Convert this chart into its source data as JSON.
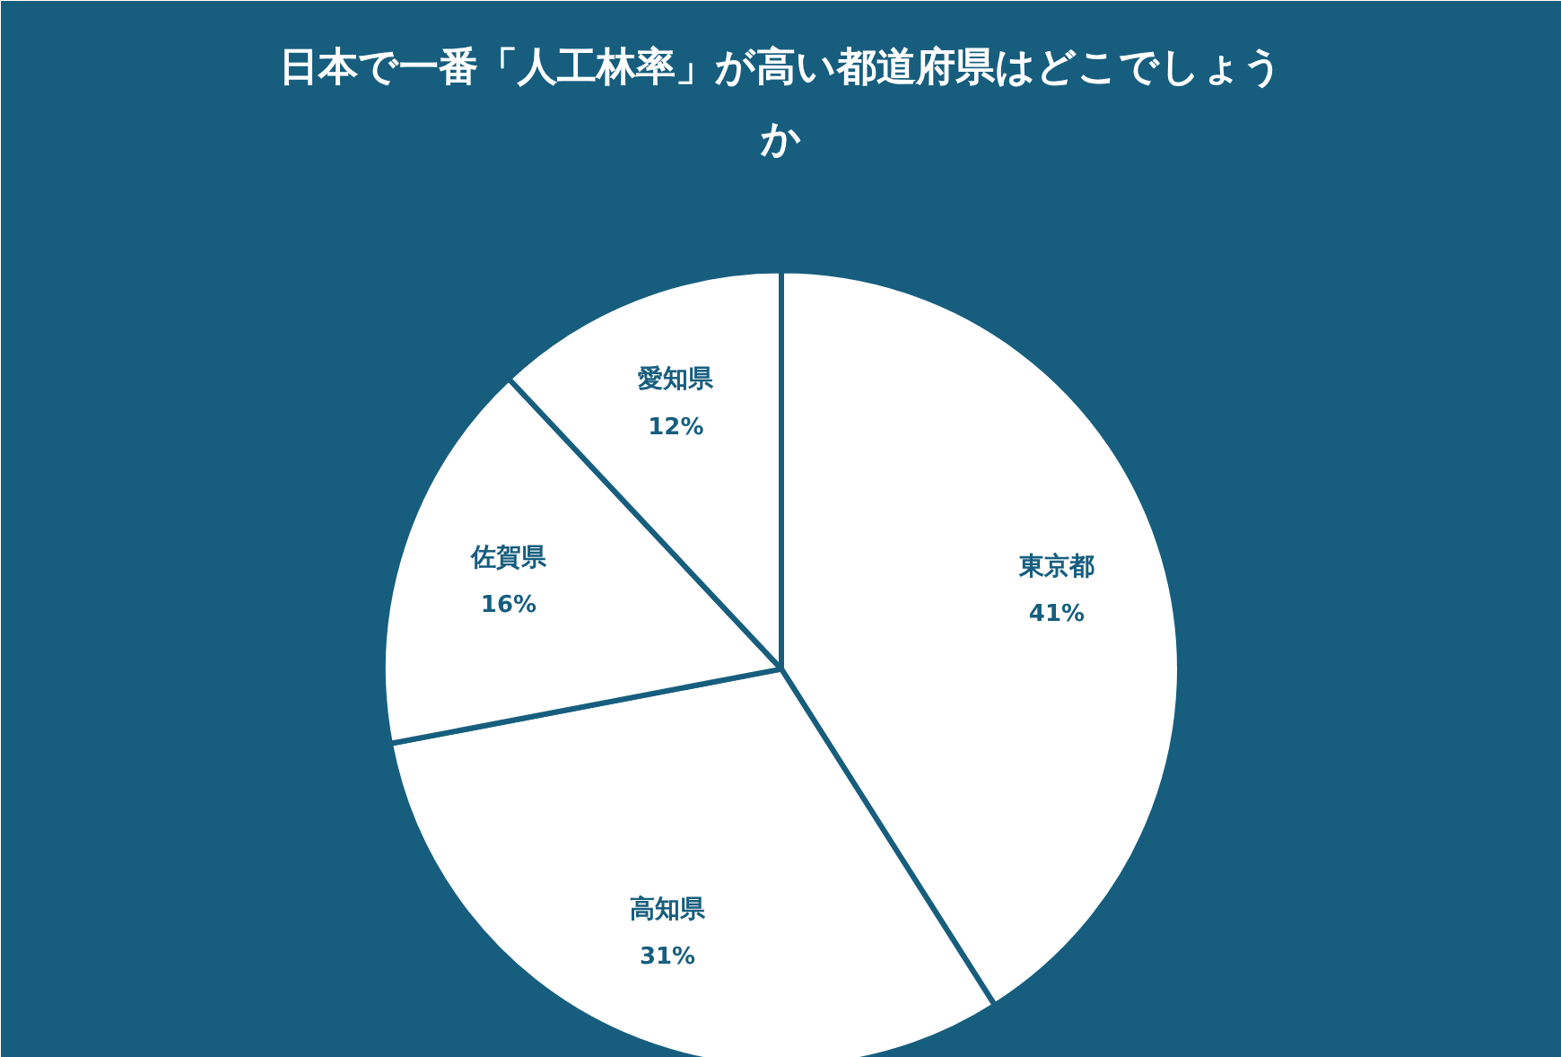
{
  "chart_data": {
    "type": "pie",
    "title": "日本で一番「人工林率」が高い都道府県はどこでしょうか",
    "categories": [
      "東京都",
      "高知県",
      "佐賀県",
      "愛知県"
    ],
    "values": [
      41,
      31,
      16,
      12
    ],
    "value_labels": [
      "41%",
      "31%",
      "16%",
      "12%"
    ],
    "colors": [
      "#ffffff",
      "#ffffff",
      "#ffffff",
      "#ffffff"
    ]
  }
}
